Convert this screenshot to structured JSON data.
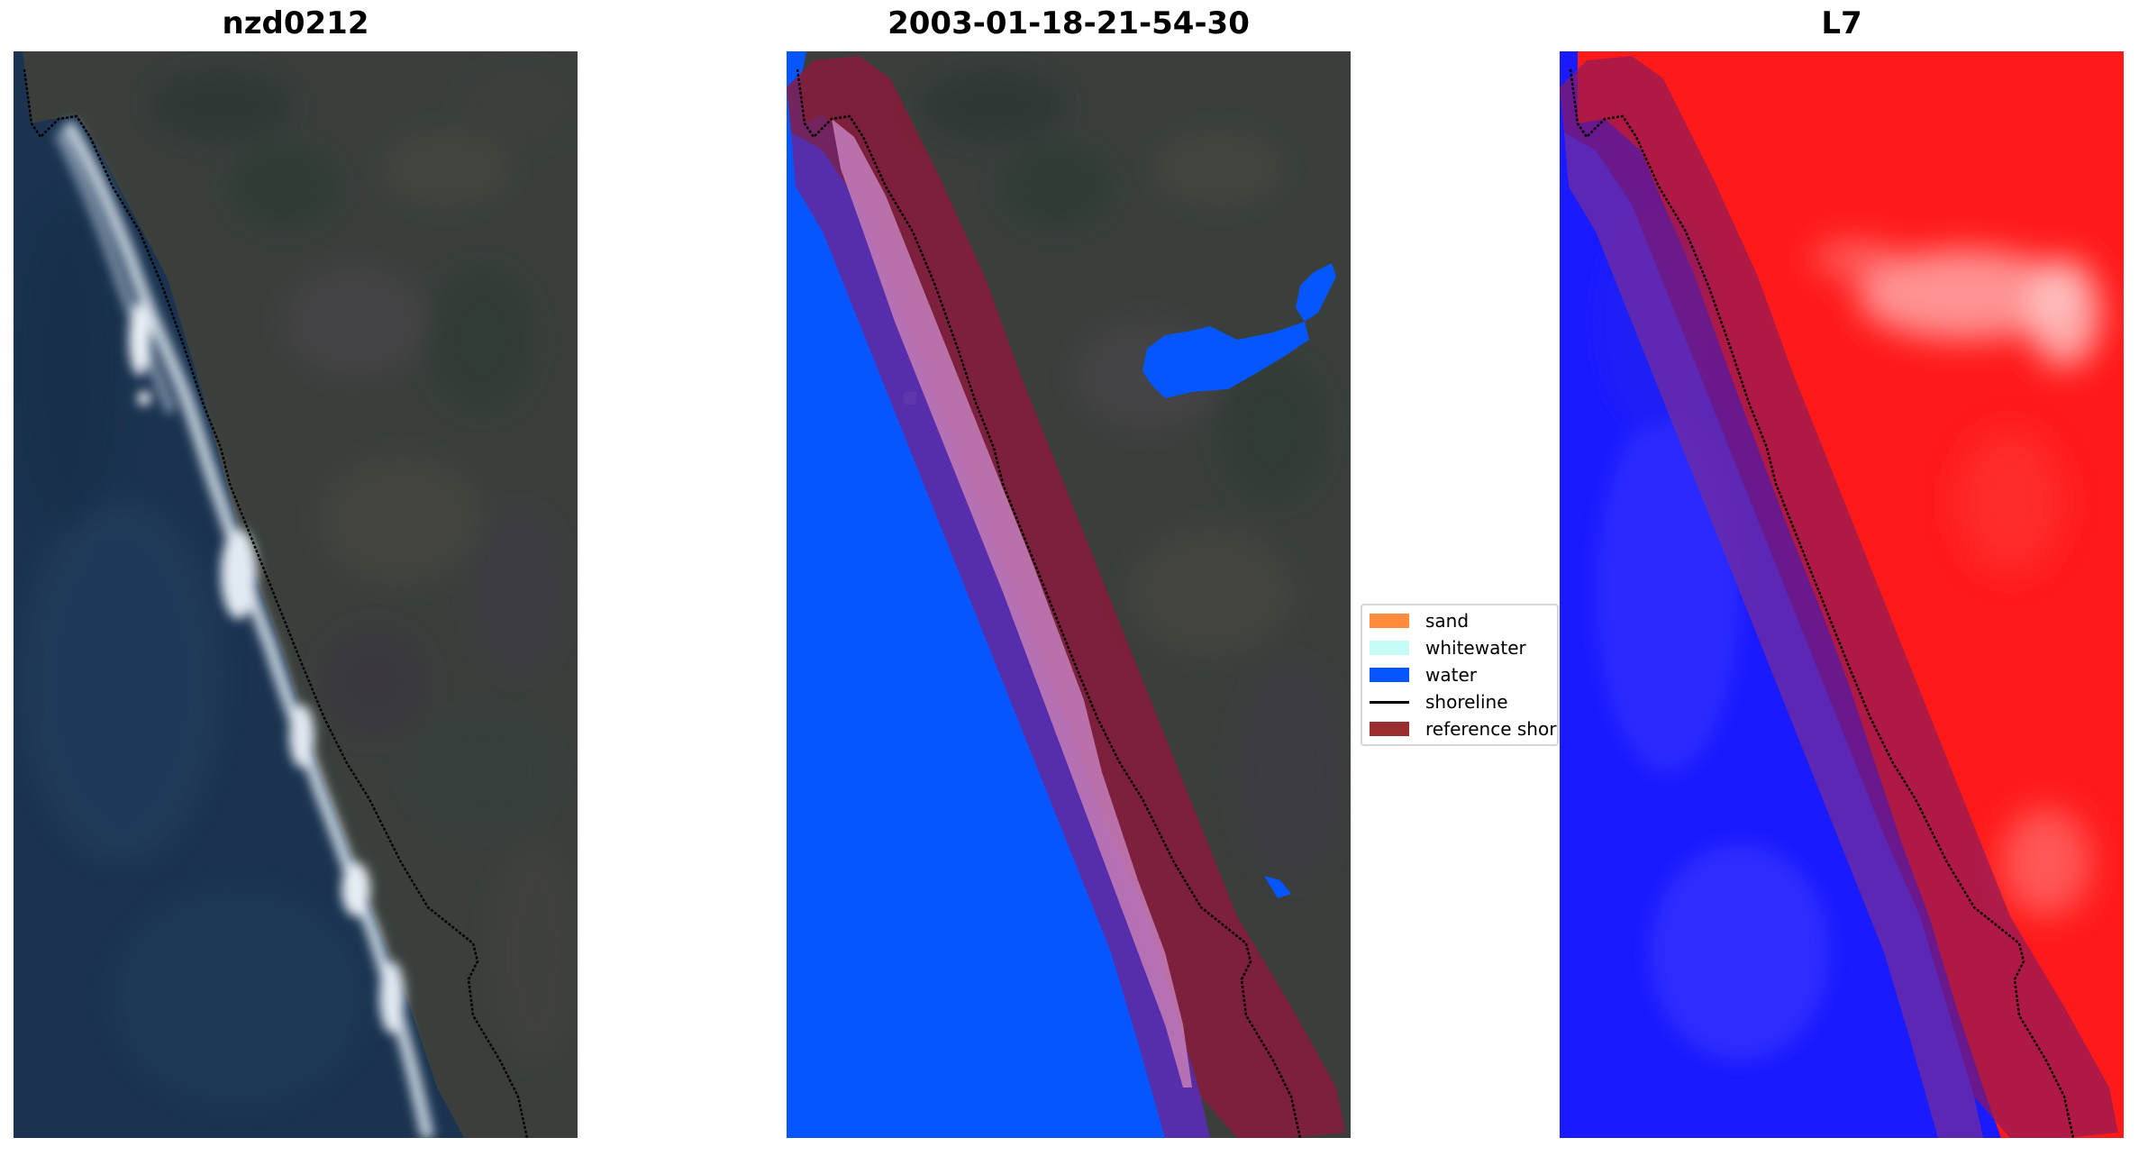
{
  "panels": [
    {
      "title": "nzd0212"
    },
    {
      "title": "2003-01-18-21-54-30"
    },
    {
      "title": "L7"
    }
  ],
  "legend": {
    "entries": [
      {
        "label": "sand",
        "color": "#ff8c3a",
        "kind": "patch"
      },
      {
        "label": "whitewater",
        "color": "#c8fcf8",
        "kind": "patch"
      },
      {
        "label": "water",
        "color": "#0556ff",
        "kind": "patch"
      },
      {
        "label": "shoreline",
        "color": "#000000",
        "kind": "line"
      },
      {
        "label": "reference shoreline buffer",
        "color": "#9a2e2e",
        "kind": "patch"
      }
    ]
  },
  "colors": {
    "ocean": "#1c3550",
    "land": "#3a3f3c",
    "water_class": "#0556ff",
    "buffer": "#8b1a3a",
    "ndwi_water": "#1a1aff",
    "ndwi_land": "#ff1a1a"
  }
}
